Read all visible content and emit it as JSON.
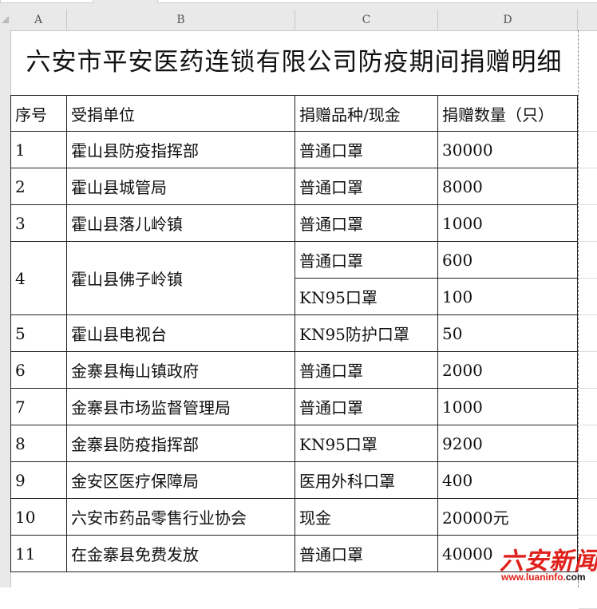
{
  "columns": [
    "A",
    "B",
    "C",
    "D"
  ],
  "title": "六安市平安医药连锁有限公司防疫期间捐赠明细",
  "headers": [
    "序号",
    "受捐单位",
    "捐赠品种/现金",
    "捐赠数量（只）"
  ],
  "rows": [
    {
      "no": "1",
      "unit": "霍山县防疫指挥部",
      "item": "普通口罩",
      "qty": "30000"
    },
    {
      "no": "2",
      "unit": "霍山县城管局",
      "item": "普通口罩",
      "qty": "8000"
    },
    {
      "no": "3",
      "unit": "霍山县落儿岭镇",
      "item": "普通口罩",
      "qty": "1000"
    },
    {
      "no": "4",
      "unit": "霍山县佛子岭镇",
      "item": "普通口罩",
      "qty": "600",
      "item2": "KN95口罩",
      "qty2": "100"
    },
    {
      "no": "5",
      "unit": "霍山县电视台",
      "item": "KN95防护口罩",
      "qty": "50"
    },
    {
      "no": "6",
      "unit": "金寨县梅山镇政府",
      "item": "普通口罩",
      "qty": "2000"
    },
    {
      "no": "7",
      "unit": "金寨县市场监督管理局",
      "item": "普通口罩",
      "qty": "1000"
    },
    {
      "no": "8",
      "unit": "金寨县防疫指挥部",
      "item": "KN95口罩",
      "qty": "9200"
    },
    {
      "no": "9",
      "unit": "金安区医疗保障局",
      "item": "医用外科口罩",
      "qty": "400"
    },
    {
      "no": "10",
      "unit": "六安市药品零售行业协会",
      "item": "现金",
      "qty": "20000元"
    },
    {
      "no": "11",
      "unit": "在金寨县免费发放",
      "item": "普通口罩",
      "qty": "40000"
    }
  ],
  "watermark": {
    "text": "六安新闻网",
    "url_red": "www.luaninfo.",
    "url_black": "com"
  }
}
